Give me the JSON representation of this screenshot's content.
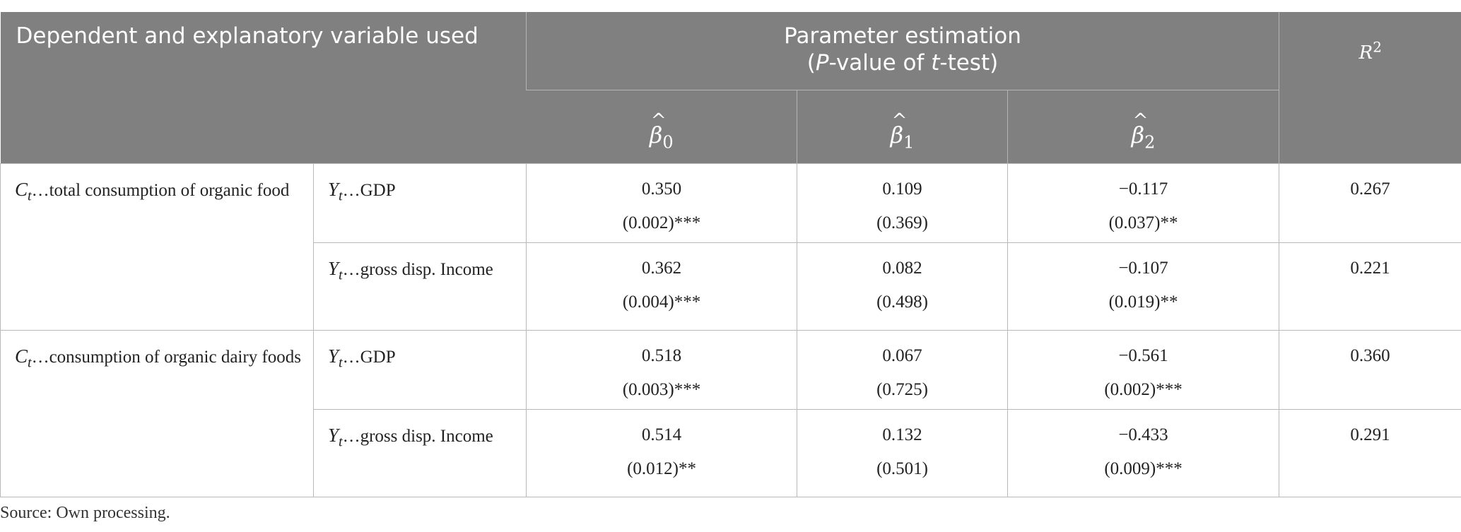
{
  "header": {
    "dependent_label": "Dependent and explanatory variable used",
    "param_line1": "Parameter estimation",
    "param_line2_open": "(",
    "param_line2_P": "P",
    "param_line2_mid": "-value of ",
    "param_line2_t": "t",
    "param_line2_end": "-test)",
    "r2_symbol": "R",
    "r2_exp": "2",
    "betas": [
      {
        "symbol": "β",
        "hat": "^",
        "sub": "0"
      },
      {
        "symbol": "β",
        "hat": "^",
        "sub": "1"
      },
      {
        "symbol": "β",
        "hat": "^",
        "sub": "2"
      }
    ]
  },
  "groups": [
    {
      "dependent": {
        "var": "C",
        "sub": "t",
        "text": "…total consumption of organic food"
      },
      "rows": [
        {
          "explanatory": {
            "var": "Y",
            "sub": "t",
            "text": "…GDP"
          },
          "b0": "0.350",
          "b0p": "(0.002)***",
          "b1": "0.109",
          "b1p": "(0.369)",
          "b2": "−0.117",
          "b2p": "(0.037)**",
          "r2": "0.267"
        },
        {
          "explanatory": {
            "var": "Y",
            "sub": "t",
            "text": "…gross disp. Income"
          },
          "b0": "0.362",
          "b0p": "(0.004)***",
          "b1": "0.082",
          "b1p": "(0.498)",
          "b2": "−0.107",
          "b2p": "(0.019)**",
          "r2": "0.221"
        }
      ]
    },
    {
      "dependent": {
        "var": "C",
        "sub": "t",
        "text": "…consumption of organic dairy foods"
      },
      "rows": [
        {
          "explanatory": {
            "var": "Y",
            "sub": "t",
            "text": "…GDP"
          },
          "b0": "0.518",
          "b0p": "(0.003)***",
          "b1": "0.067",
          "b1p": "(0.725)",
          "b2": "−0.561",
          "b2p": "(0.002)***",
          "r2": "0.360"
        },
        {
          "explanatory": {
            "var": "Y",
            "sub": "t",
            "text": "…gross disp. Income"
          },
          "b0": "0.514",
          "b0p": "(0.012)**",
          "b1": "0.132",
          "b1p": "(0.501)",
          "b2": "−0.433",
          "b2p": "(0.009)***",
          "r2": "0.291"
        }
      ]
    }
  ],
  "source_note": "Source: Own processing."
}
